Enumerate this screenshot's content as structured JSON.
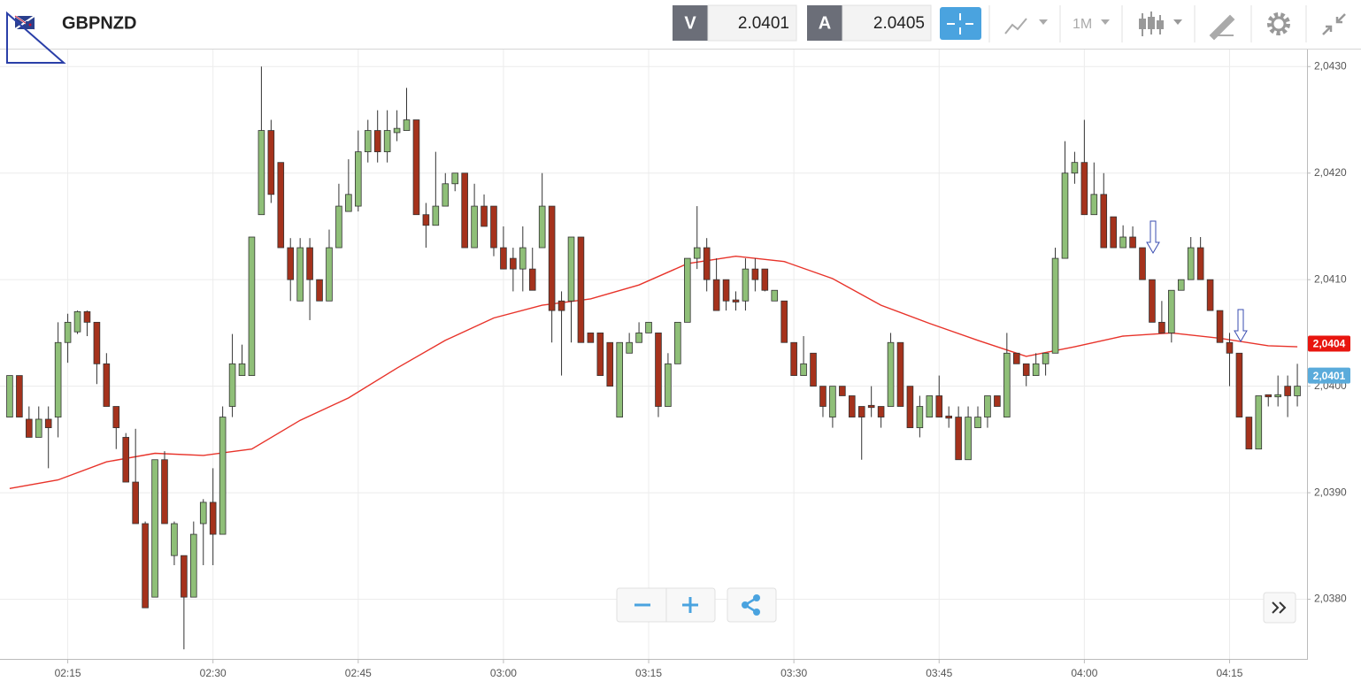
{
  "toolbar": {
    "bid_label": "V",
    "bid": 2.0401,
    "ask_label": "A",
    "ask": 2.0405,
    "timeframe": "1M"
  },
  "chart_data": {
    "type": "candlestick",
    "title": "GBPNZD",
    "x": [
      "02:09",
      "02:10",
      "02:11",
      "02:12",
      "02:13",
      "02:14",
      "02:15",
      "02:16",
      "02:17",
      "02:18",
      "02:19",
      "02:20",
      "02:21",
      "02:22",
      "02:23",
      "02:24",
      "02:25",
      "02:26",
      "02:27",
      "02:28",
      "02:29",
      "02:30",
      "02:31",
      "02:32",
      "02:33",
      "02:34",
      "02:35",
      "02:36",
      "02:37",
      "02:38",
      "02:39",
      "02:40",
      "02:41",
      "02:42",
      "02:43",
      "02:44",
      "02:45",
      "02:46",
      "02:47",
      "02:48",
      "02:49",
      "02:50",
      "02:51",
      "02:52",
      "02:53",
      "02:54",
      "02:55",
      "02:56",
      "02:57",
      "02:58",
      "02:59",
      "03:00",
      "03:01",
      "03:02",
      "03:03",
      "03:04",
      "03:05",
      "03:06",
      "03:07",
      "03:08",
      "03:09",
      "03:10",
      "03:11",
      "03:12",
      "03:13",
      "03:14",
      "03:15",
      "03:16",
      "03:17",
      "03:18",
      "03:19",
      "03:20",
      "03:21",
      "03:22",
      "03:23",
      "03:24",
      "03:25",
      "03:26",
      "03:27",
      "03:28",
      "03:29",
      "03:30",
      "03:31",
      "03:32",
      "03:33",
      "03:34",
      "03:35",
      "03:36",
      "03:37",
      "03:38",
      "03:39",
      "03:40",
      "03:41",
      "03:42",
      "03:43",
      "03:44",
      "03:45",
      "03:46",
      "03:47",
      "03:48",
      "03:49",
      "03:50",
      "03:51",
      "03:52",
      "03:53",
      "03:54",
      "03:55",
      "03:56",
      "03:57",
      "03:58",
      "03:59",
      "04:00",
      "04:01",
      "04:02",
      "04:03",
      "04:04",
      "04:05",
      "04:06",
      "04:07",
      "04:08",
      "04:09",
      "04:10",
      "04:11",
      "04:12",
      "04:13",
      "04:14",
      "04:15",
      "04:16",
      "04:17",
      "04:18",
      "04:19",
      "04:20",
      "04:21",
      "04:22"
    ],
    "open": [
      2.03971,
      2.0401,
      2.03969,
      2.03952,
      2.03969,
      2.03971,
      2.04041,
      2.04051,
      2.0407,
      2.0406,
      2.04021,
      2.03981,
      2.03952,
      2.0391,
      2.03871,
      2.03802,
      2.03931,
      2.03841,
      2.03841,
      2.03802,
      2.03871,
      2.03891,
      2.03861,
      2.03981,
      2.0401,
      2.0401,
      2.04161,
      2.0424,
      2.0421,
      2.0413,
      2.0408,
      2.0413,
      2.041,
      2.0408,
      2.0413,
      2.04164,
      2.04169,
      2.0422,
      2.0424,
      2.0422,
      2.04238,
      2.0424,
      2.0425,
      2.04161,
      2.04151,
      2.04169,
      2.0419,
      2.042,
      2.0413,
      2.04169,
      2.04169,
      2.0413,
      2.0412,
      2.0411,
      2.0411,
      2.0413,
      2.04169,
      2.0408,
      2.0408,
      2.0414,
      2.0405,
      2.0405,
      2.04041,
      2.03971,
      2.04031,
      2.04041,
      2.0405,
      2.0405,
      2.03981,
      2.04021,
      2.0406,
      2.0412,
      2.0413,
      2.041,
      2.041,
      2.04081,
      2.0408,
      2.0411,
      2.0411,
      2.0408,
      2.0408,
      2.04041,
      2.0401,
      2.04031,
      2.04,
      2.03971,
      2.04,
      2.03991,
      2.03981,
      2.03982,
      2.03981,
      2.03981,
      2.04041,
      2.04,
      2.03961,
      2.03971,
      2.03991,
      2.03972,
      2.03971,
      2.03931,
      2.03961,
      2.03971,
      2.03991,
      2.03971,
      2.04031,
      2.04021,
      2.0401,
      2.04021,
      2.04031,
      2.0412,
      2.042,
      2.0421,
      2.04161,
      2.0418,
      2.04159,
      2.0413,
      2.0414,
      2.0413,
      2.041,
      2.0406,
      2.0405,
      2.0409,
      2.041,
      2.0413,
      2.041,
      2.04071,
      2.04041,
      2.04031,
      2.03971,
      2.03941,
      2.03992,
      2.0399,
      2.04,
      2.03991
    ],
    "high": [
      2.0401,
      2.0401,
      2.03981,
      2.03981,
      2.03981,
      2.0406,
      2.04068,
      2.04071,
      2.04071,
      2.0406,
      2.04031,
      2.03981,
      2.03956,
      2.0396,
      2.03873,
      2.03931,
      2.03939,
      2.03873,
      2.03841,
      2.03873,
      2.03894,
      2.03923,
      2.03981,
      2.04049,
      2.04039,
      2.0414,
      2.043,
      2.0425,
      2.0421,
      2.04139,
      2.04139,
      2.04139,
      2.041,
      2.04147,
      2.0419,
      2.04213,
      2.0424,
      2.0425,
      2.04259,
      2.04259,
      2.04259,
      2.0428,
      2.0425,
      2.04172,
      2.0422,
      2.042,
      2.042,
      2.042,
      2.0419,
      2.0418,
      2.04169,
      2.0415,
      2.0413,
      2.0415,
      2.0413,
      2.042,
      2.04169,
      2.04089,
      2.0414,
      2.0414,
      2.0405,
      2.0405,
      2.04041,
      2.04041,
      2.0405,
      2.0406,
      2.0406,
      2.0405,
      2.04031,
      2.0406,
      2.0412,
      2.04169,
      2.04139,
      2.0412,
      2.041,
      2.04089,
      2.0412,
      2.0412,
      2.0411,
      2.0409,
      2.0408,
      2.04041,
      2.04047,
      2.04031,
      2.04,
      2.04,
      2.04,
      2.03991,
      2.03981,
      2.04,
      2.03981,
      2.0405,
      2.04041,
      2.04,
      2.03991,
      2.03991,
      2.0401,
      2.03981,
      2.03981,
      2.03981,
      2.03981,
      2.03991,
      2.03991,
      2.0405,
      2.04031,
      2.04021,
      2.04031,
      2.04031,
      2.0413,
      2.0423,
      2.0422,
      2.0425,
      2.0421,
      2.042,
      2.04159,
      2.04151,
      2.0415,
      2.0413,
      2.041,
      2.0408,
      2.0409,
      2.041,
      2.0414,
      2.0414,
      2.041,
      2.04071,
      2.0405,
      2.04031,
      2.03971,
      2.03991,
      2.03992,
      2.0401,
      2.0401,
      2.04021
    ],
    "low": [
      2.03971,
      2.03971,
      2.03952,
      2.03952,
      2.03923,
      2.03952,
      2.04022,
      2.04049,
      2.04047,
      2.04002,
      2.03981,
      2.03941,
      2.0391,
      2.03871,
      2.03792,
      2.03802,
      2.03871,
      2.03832,
      2.03753,
      2.03802,
      2.03832,
      2.03832,
      2.03861,
      2.03971,
      2.0401,
      2.0401,
      2.04161,
      2.04172,
      2.0413,
      2.0408,
      2.0408,
      2.04062,
      2.0408,
      2.0408,
      2.0413,
      2.04164,
      2.04164,
      2.0421,
      2.0421,
      2.0421,
      2.0423,
      2.0424,
      2.04161,
      2.0413,
      2.04151,
      2.04169,
      2.04183,
      2.0413,
      2.0413,
      2.0415,
      2.04122,
      2.0411,
      2.04089,
      2.04089,
      2.0409,
      2.0413,
      2.04041,
      2.0401,
      2.04041,
      2.04041,
      2.04041,
      2.0401,
      2.04,
      2.03971,
      2.04031,
      2.04041,
      2.0405,
      2.03971,
      2.03981,
      2.04021,
      2.0406,
      2.0411,
      2.04089,
      2.04071,
      2.04071,
      2.04071,
      2.04071,
      2.04089,
      2.04089,
      2.0408,
      2.04041,
      2.0401,
      2.0401,
      2.04,
      2.03971,
      2.03961,
      2.03991,
      2.03971,
      2.03931,
      2.03971,
      2.03961,
      2.03981,
      2.03981,
      2.03961,
      2.03952,
      2.03971,
      2.03971,
      2.03961,
      2.03931,
      2.03931,
      2.03961,
      2.03961,
      2.03981,
      2.03971,
      2.04021,
      2.04,
      2.0401,
      2.0401,
      2.04031,
      2.0412,
      2.0419,
      2.04161,
      2.04161,
      2.0413,
      2.0413,
      2.0413,
      2.0413,
      2.041,
      2.0406,
      2.0405,
      2.04041,
      2.0409,
      2.041,
      2.041,
      2.04071,
      2.04041,
      2.04,
      2.03971,
      2.03941,
      2.03941,
      2.03981,
      2.03981,
      2.03971,
      2.03981
    ],
    "close": [
      2.0401,
      2.03971,
      2.03952,
      2.03969,
      2.03961,
      2.04041,
      2.0406,
      2.0407,
      2.0406,
      2.04021,
      2.03981,
      2.03961,
      2.0391,
      2.03871,
      2.03792,
      2.03931,
      2.03871,
      2.03871,
      2.03802,
      2.03861,
      2.03891,
      2.03861,
      2.03971,
      2.04021,
      2.04021,
      2.0414,
      2.0424,
      2.0418,
      2.0413,
      2.041,
      2.0413,
      2.041,
      2.0408,
      2.0413,
      2.04169,
      2.0418,
      2.0422,
      2.0424,
      2.0422,
      2.0424,
      2.04242,
      2.0425,
      2.04161,
      2.04151,
      2.04169,
      2.0419,
      2.042,
      2.0413,
      2.04169,
      2.0415,
      2.0413,
      2.0411,
      2.0411,
      2.0413,
      2.0409,
      2.04169,
      2.04071,
      2.04071,
      2.0414,
      2.04041,
      2.04041,
      2.0401,
      2.04,
      2.04041,
      2.04041,
      2.0405,
      2.0406,
      2.03981,
      2.04021,
      2.0406,
      2.0412,
      2.0413,
      2.041,
      2.04071,
      2.0408,
      2.04079,
      2.0411,
      2.041,
      2.0409,
      2.0409,
      2.04041,
      2.0401,
      2.04021,
      2.04,
      2.03981,
      2.04,
      2.03991,
      2.03971,
      2.03971,
      2.0398,
      2.03971,
      2.04041,
      2.03981,
      2.03961,
      2.03981,
      2.03991,
      2.03971,
      2.0397,
      2.03931,
      2.03971,
      2.03971,
      2.03991,
      2.03981,
      2.04031,
      2.04021,
      2.0401,
      2.04021,
      2.04031,
      2.0412,
      2.042,
      2.0421,
      2.04161,
      2.0418,
      2.0413,
      2.0413,
      2.0414,
      2.0413,
      2.041,
      2.0406,
      2.0405,
      2.0409,
      2.041,
      2.0413,
      2.041,
      2.04071,
      2.04041,
      2.04031,
      2.03971,
      2.03941,
      2.03991,
      2.0399,
      2.03992,
      2.03991,
      2.04
    ],
    "up_color": "#8fbf78",
    "down_color": "#a5321c",
    "ma": {
      "color": "#e8332a",
      "x": [
        "02:09",
        "02:14",
        "02:19",
        "02:24",
        "02:29",
        "02:34",
        "02:39",
        "02:44",
        "02:49",
        "02:54",
        "02:59",
        "03:04",
        "03:09",
        "03:14",
        "03:19",
        "03:24",
        "03:29",
        "03:34",
        "03:39",
        "03:44",
        "03:49",
        "03:54",
        "03:59",
        "04:04",
        "04:09",
        "04:14",
        "04:19",
        "04:22"
      ],
      "values": [
        2.03904,
        2.03912,
        2.03929,
        2.03937,
        2.03935,
        2.03941,
        2.03968,
        2.03989,
        2.04017,
        2.04043,
        2.04064,
        2.04076,
        2.04082,
        2.04095,
        2.04115,
        2.04122,
        2.04117,
        2.04101,
        2.04076,
        2.04059,
        2.04043,
        2.04028,
        2.04037,
        2.04047,
        2.0405,
        2.04045,
        2.04038,
        2.04037
      ]
    },
    "xlim": [
      "02:08",
      "04:23"
    ],
    "xticks": [
      "02:15",
      "02:30",
      "02:45",
      "03:00",
      "03:15",
      "03:30",
      "03:45",
      "04:00",
      "04:15"
    ],
    "ylim": [
      2.03744,
      2.04316
    ],
    "yticks": [
      {
        "value": 2.038,
        "label": "2,0380"
      },
      {
        "value": 2.039,
        "label": "2,0390"
      },
      {
        "value": 2.04,
        "label": "2,0400"
      },
      {
        "value": 2.041,
        "label": "2,0410"
      },
      {
        "value": 2.042,
        "label": "2,0420"
      },
      {
        "value": 2.043,
        "label": "2,0430"
      }
    ],
    "grid": true,
    "price_markers": [
      {
        "value": 2.0404,
        "label": "2,0404",
        "color": "#e8150f"
      },
      {
        "value": 2.0401,
        "label": "2,0401",
        "color": "#5aabdb"
      }
    ]
  }
}
